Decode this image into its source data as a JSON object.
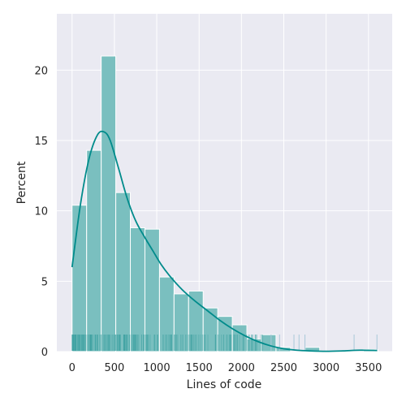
{
  "chart_data": {
    "type": "histogram",
    "xlabel": "Lines of code",
    "ylabel": "Percent",
    "xlim": [
      -180,
      3780
    ],
    "ylim": [
      0,
      24
    ],
    "x_ticks": [
      0,
      500,
      1000,
      1500,
      2000,
      2500,
      3000,
      3500
    ],
    "y_ticks": [
      0,
      5,
      10,
      15,
      20
    ],
    "grid": true,
    "legend": "none",
    "bin_width": 172,
    "bins": [
      {
        "x0": 0,
        "x1": 172,
        "value": 10.4
      },
      {
        "x0": 172,
        "x1": 344,
        "value": 14.3
      },
      {
        "x0": 344,
        "x1": 516,
        "value": 21.0
      },
      {
        "x0": 516,
        "x1": 688,
        "value": 11.3
      },
      {
        "x0": 688,
        "x1": 860,
        "value": 8.8
      },
      {
        "x0": 860,
        "x1": 1032,
        "value": 8.7
      },
      {
        "x0": 1032,
        "x1": 1204,
        "value": 5.3
      },
      {
        "x0": 1204,
        "x1": 1376,
        "value": 4.1
      },
      {
        "x0": 1376,
        "x1": 1548,
        "value": 4.3
      },
      {
        "x0": 1548,
        "x1": 1720,
        "value": 3.1
      },
      {
        "x0": 1720,
        "x1": 1892,
        "value": 2.5
      },
      {
        "x0": 1892,
        "x1": 2064,
        "value": 1.9
      },
      {
        "x0": 2064,
        "x1": 2236,
        "value": 0.9
      },
      {
        "x0": 2236,
        "x1": 2408,
        "value": 1.2
      },
      {
        "x0": 2408,
        "x1": 2580,
        "value": 0.3
      },
      {
        "x0": 2580,
        "x1": 2752,
        "value": 0.0
      },
      {
        "x0": 2752,
        "x1": 2924,
        "value": 0.3
      },
      {
        "x0": 2924,
        "x1": 3096,
        "value": 0.0
      },
      {
        "x0": 3096,
        "x1": 3268,
        "value": 0.0
      },
      {
        "x0": 3268,
        "x1": 3440,
        "value": 0.0
      },
      {
        "x0": 3440,
        "x1": 3612,
        "value": 0.15
      }
    ],
    "kde": {
      "name": "kde",
      "points": [
        [
          0,
          6.0
        ],
        [
          100,
          10.5
        ],
        [
          200,
          13.7
        ],
        [
          300,
          15.4
        ],
        [
          380,
          15.6
        ],
        [
          450,
          15.0
        ],
        [
          550,
          13.0
        ],
        [
          650,
          10.9
        ],
        [
          750,
          9.3
        ],
        [
          850,
          8.2
        ],
        [
          950,
          7.2
        ],
        [
          1050,
          6.2
        ],
        [
          1150,
          5.4
        ],
        [
          1300,
          4.4
        ],
        [
          1450,
          3.6
        ],
        [
          1600,
          2.9
        ],
        [
          1750,
          2.2
        ],
        [
          1900,
          1.6
        ],
        [
          2050,
          1.1
        ],
        [
          2200,
          0.7
        ],
        [
          2350,
          0.4
        ],
        [
          2500,
          0.2
        ],
        [
          2650,
          0.1
        ],
        [
          2800,
          0.05
        ],
        [
          3000,
          0.02
        ],
        [
          3200,
          0.05
        ],
        [
          3400,
          0.1
        ],
        [
          3600,
          0.08
        ]
      ]
    },
    "rug": {
      "dense_range": [
        0,
        2280
      ],
      "sparse_values": [
        2350,
        2450,
        2620,
        2680,
        2750,
        3330,
        3600
      ]
    },
    "colors": {
      "bar_fill": "#7abfbf",
      "bar_stroke": "#ffffff",
      "kde_line": "#008b8b",
      "rug": "#3fa3a3",
      "plot_background": "#eaeaf2",
      "grid": "#ffffff"
    }
  }
}
